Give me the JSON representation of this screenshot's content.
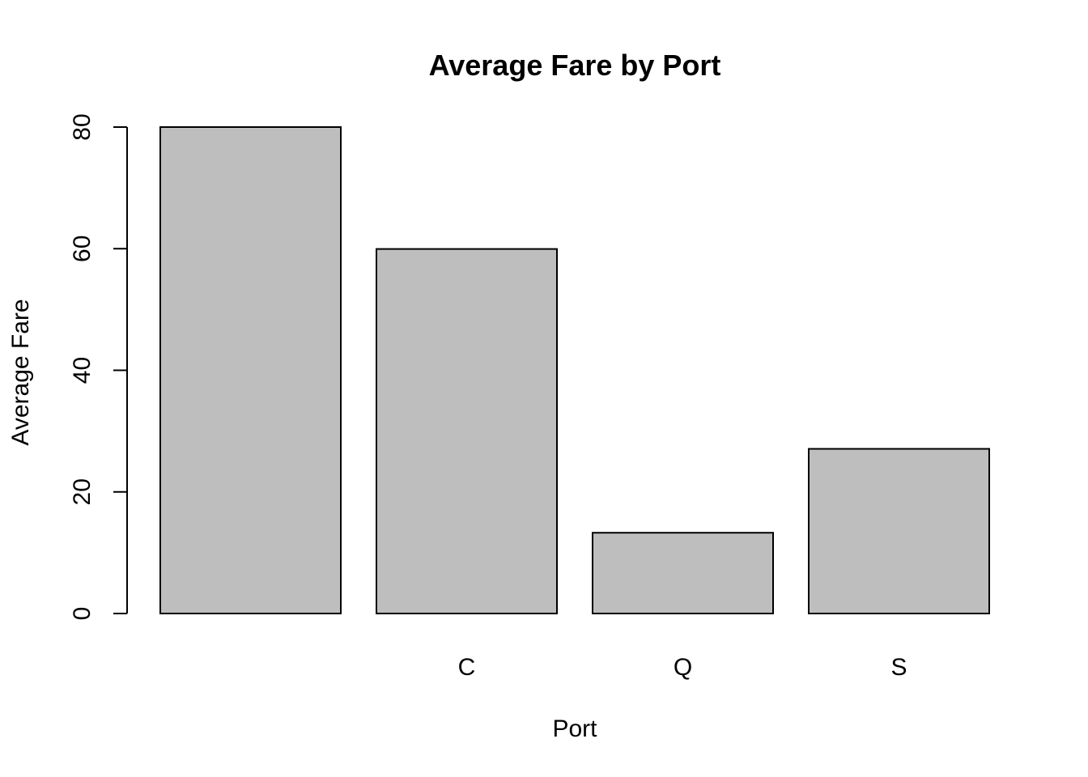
{
  "chart_data": {
    "type": "bar",
    "title": "Average Fare by Port",
    "xlabel": "Port",
    "ylabel": "Average Fare",
    "categories": [
      "",
      "C",
      "Q",
      "S"
    ],
    "values": [
      80,
      59.95,
      13.28,
      27.08
    ],
    "ylim": [
      0,
      80
    ],
    "y_ticks": [
      "0",
      "20",
      "40",
      "60",
      "80"
    ],
    "grid": false,
    "legend": "none",
    "bar_color": "#BEBEBE",
    "outline_color": "#000000"
  }
}
